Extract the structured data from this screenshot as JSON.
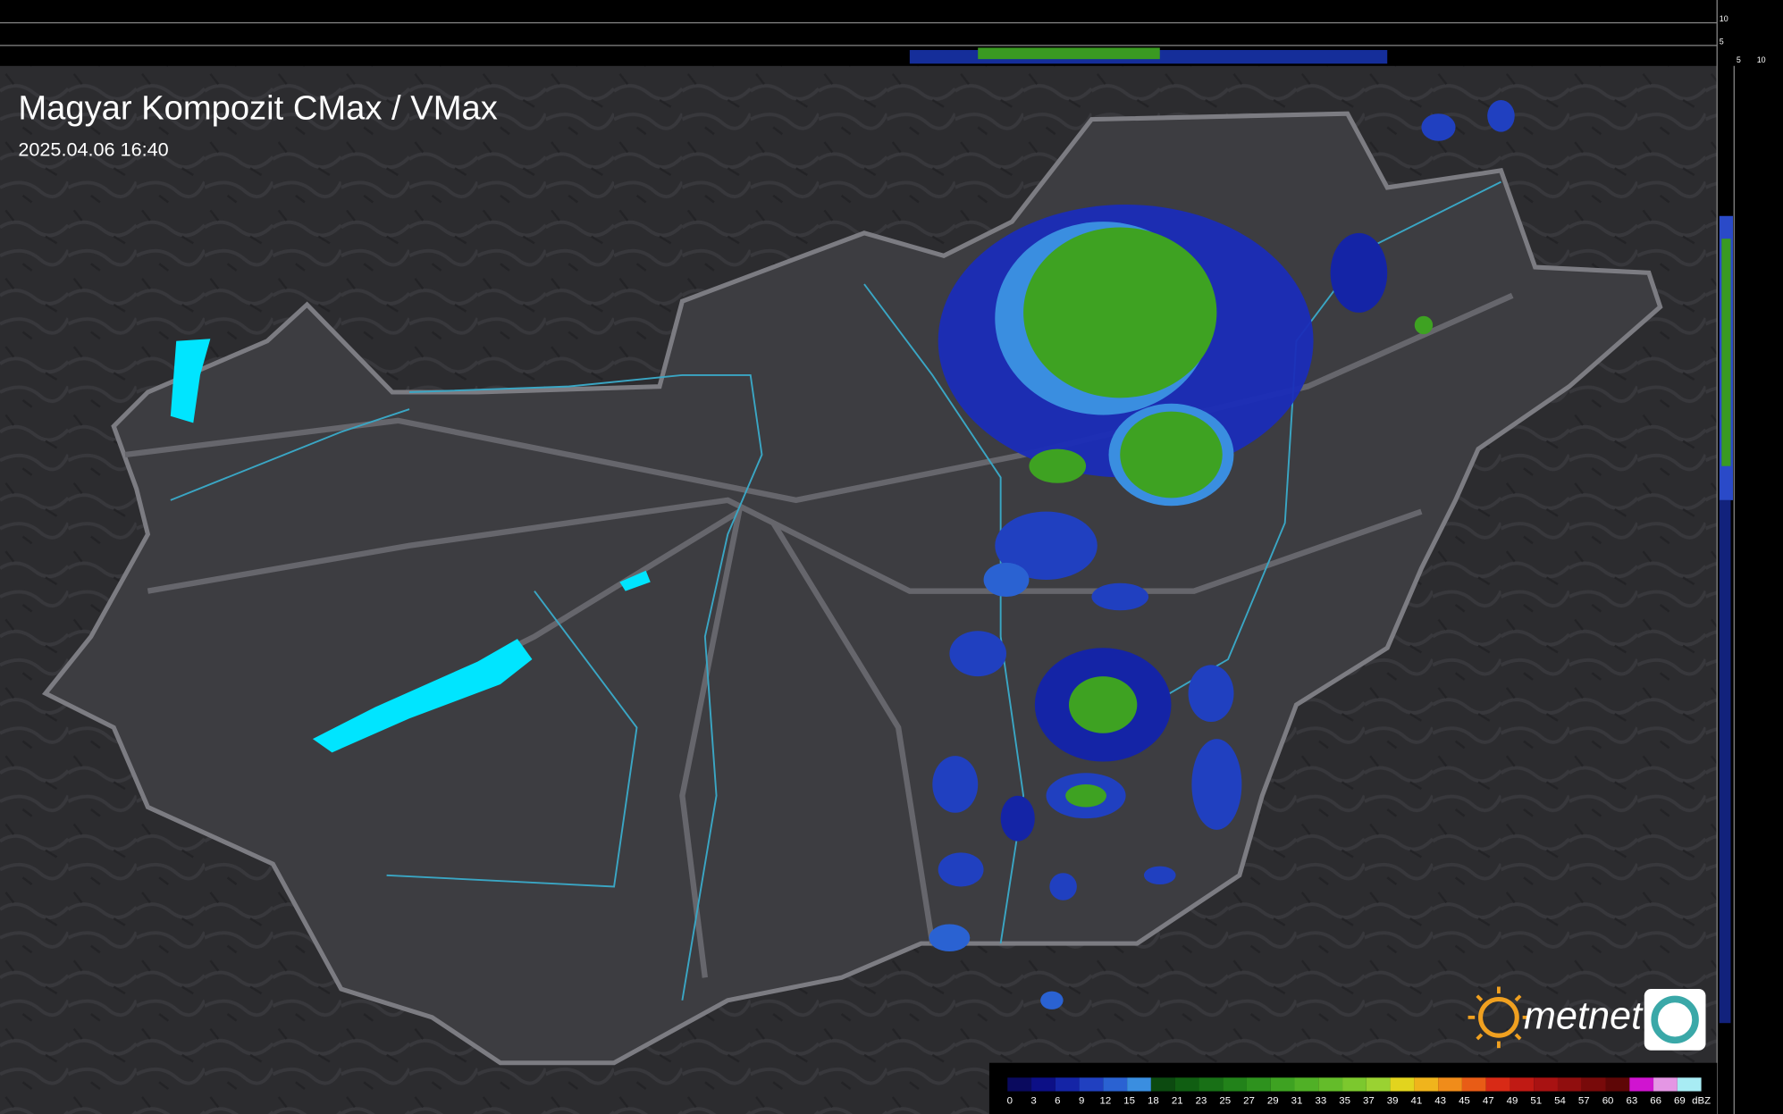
{
  "header": {
    "title": "Magyar Kompozit CMax / VMax",
    "timestamp": "2025.04.06 16:40"
  },
  "side_panel": {
    "labels": [
      "10",
      "5",
      "5",
      "10"
    ]
  },
  "logo": {
    "text": "metnet"
  },
  "legend": {
    "unit": "dBZ",
    "steps": [
      {
        "label": "0",
        "color": "#0a0a5e"
      },
      {
        "label": "3",
        "color": "#0c0f86"
      },
      {
        "label": "6",
        "color": "#1424a6"
      },
      {
        "label": "9",
        "color": "#2040c0"
      },
      {
        "label": "12",
        "color": "#2a62d2"
      },
      {
        "label": "15",
        "color": "#3a8ee0"
      },
      {
        "label": "18",
        "color": "#0c4a10"
      },
      {
        "label": "21",
        "color": "#105e12"
      },
      {
        "label": "23",
        "color": "#187016"
      },
      {
        "label": "25",
        "color": "#22821a"
      },
      {
        "label": "27",
        "color": "#2e921e"
      },
      {
        "label": "29",
        "color": "#3ea222"
      },
      {
        "label": "31",
        "color": "#50b026"
      },
      {
        "label": "33",
        "color": "#64bc2a"
      },
      {
        "label": "35",
        "color": "#7cc82e"
      },
      {
        "label": "37",
        "color": "#9ad232"
      },
      {
        "label": "39",
        "color": "#e2d41e"
      },
      {
        "label": "41",
        "color": "#f0b41c"
      },
      {
        "label": "43",
        "color": "#f08c1a"
      },
      {
        "label": "45",
        "color": "#e85c16"
      },
      {
        "label": "47",
        "color": "#d82a16"
      },
      {
        "label": "49",
        "color": "#c01a14"
      },
      {
        "label": "51",
        "color": "#a81212"
      },
      {
        "label": "54",
        "color": "#900e0e"
      },
      {
        "label": "57",
        "color": "#780a0a"
      },
      {
        "label": "60",
        "color": "#5e0606"
      },
      {
        "label": "63",
        "color": "#d014d0"
      },
      {
        "label": "66",
        "color": "#e496e4"
      },
      {
        "label": "69",
        "color": "#a8ecf4"
      }
    ]
  }
}
